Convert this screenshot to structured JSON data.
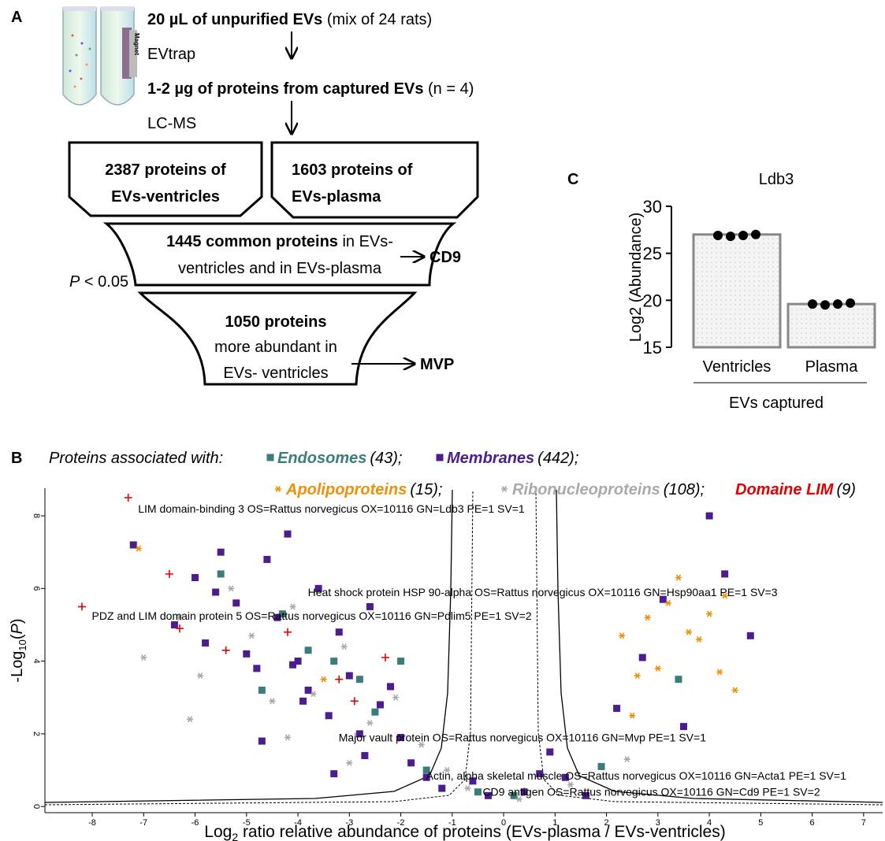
{
  "diagram": {
    "label": "A",
    "magnet": "Magnet",
    "start": {
      "bold": "20 µL of unpurified EVs",
      "normal": " (mix of 24 rats)"
    },
    "step1": "EVtrap",
    "captured": {
      "bold": "1-2 µg of proteins from captured EVs",
      "normal": " (n = 4)"
    },
    "step2": "LC-MS",
    "ventricles": [
      "2387 proteins of",
      "EVs-ventricles"
    ],
    "plasma": [
      "1603 proteins of",
      "EVs-plasma"
    ],
    "common": {
      "bold": "1445 common proteins",
      "normal": " in EVs-",
      "line2": "ventricles and in EVs-plasma"
    },
    "marker1": "CD9",
    "threshold": {
      "italic": "P",
      "normal": " < 0.05"
    },
    "abundant": [
      "1050 proteins",
      "more abundant  in",
      "EVs- ventricles"
    ],
    "marker2": "MVP"
  },
  "chart_data": [
    {
      "type": "bar",
      "panel": "C",
      "title": "Ldb3",
      "ylabel": "Log2 (Abundance)",
      "xlabel": "EVs captured",
      "categories": [
        "Ventricles",
        "Plasma"
      ],
      "values": [
        27.0,
        19.6
      ],
      "points": [
        [
          26.9,
          26.8,
          26.9,
          27.0
        ],
        [
          19.6,
          19.5,
          19.6,
          19.7
        ]
      ],
      "color": "#888888",
      "point_color": "#000000",
      "ylim": [
        15,
        30
      ],
      "yticks": [
        15,
        20,
        25,
        30
      ]
    },
    {
      "type": "scatter",
      "panel": "B",
      "legend_title": "Proteins associated with:",
      "xlabel": {
        "main": "Log",
        "sub": "2",
        "rest": " ratio relative abundance of proteins (EVs-plasma / EVs-ventricles)"
      },
      "ylabel": {
        "main": "-Log",
        "sub": "10",
        "open": "(",
        "var": "P",
        "close": ")"
      },
      "xlim": [
        -8.92,
        7.37
      ],
      "ylim": [
        -0.17,
        8.76
      ],
      "xticks": [
        -8,
        -7,
        -6,
        -5,
        -4,
        -3,
        -2,
        -1,
        0,
        1,
        2,
        3,
        4,
        5,
        6,
        7
      ],
      "yticks": [
        0,
        2,
        4,
        6,
        8
      ],
      "series": [
        {
          "name": "Endosomes",
          "legend_note": "(43);",
          "color": "#3a7d7a",
          "marker": "square",
          "x": [
            -5.5,
            -4.7,
            -4.3,
            -3.8,
            -3.3,
            -2.8,
            -2.5,
            -2.0,
            -1.5,
            -0.5,
            0.2,
            1.9,
            3.4
          ],
          "values": [
            6.4,
            3.2,
            5.3,
            4.3,
            4.0,
            3.5,
            2.6,
            4.0,
            1.0,
            0.4,
            0.3,
            1.1,
            3.5
          ]
        },
        {
          "name": "Membranes",
          "legend_note": "(442);",
          "color": "#4b1d8f",
          "marker": "square",
          "x": [
            -7.2,
            -6.4,
            -6.0,
            -5.8,
            -5.5,
            -5.2,
            -5.0,
            -4.8,
            -4.6,
            -4.4,
            -4.2,
            -4.0,
            -3.8,
            -3.6,
            -3.4,
            -3.2,
            -3.0,
            -2.8,
            -2.6,
            -2.4,
            -2.2,
            -2.0,
            -1.8,
            -1.5,
            -1.2,
            -0.6,
            -0.3,
            0.4,
            0.7,
            0.9,
            1.2,
            1.6,
            2.2,
            2.7,
            3.1,
            3.5,
            4.0,
            4.3,
            4.8,
            -3.9,
            -4.7,
            -5.6,
            -3.3,
            -2.7,
            -4.1
          ],
          "values": [
            7.2,
            5.0,
            6.3,
            4.5,
            7.0,
            5.6,
            4.2,
            3.8,
            6.8,
            5.2,
            7.5,
            4.0,
            3.2,
            6.0,
            2.5,
            4.8,
            3.6,
            2.0,
            5.5,
            2.8,
            3.3,
            1.9,
            1.2,
            0.8,
            0.5,
            0.7,
            0.3,
            0.4,
            0.9,
            1.5,
            0.8,
            0.3,
            2.7,
            4.1,
            5.7,
            2.2,
            8.0,
            6.4,
            4.7,
            2.9,
            1.8,
            5.9,
            0.9,
            1.4,
            3.9
          ]
        },
        {
          "name": "Apolipoproteins",
          "legend_note": "(15);",
          "color": "#f0900a",
          "marker": "asterisk",
          "x": [
            -7.1,
            2.5,
            2.8,
            3.0,
            3.2,
            3.4,
            3.6,
            3.8,
            4.0,
            4.2,
            4.3,
            4.5,
            2.3,
            2.6,
            -3.5
          ],
          "values": [
            7.1,
            2.5,
            5.2,
            3.8,
            5.6,
            6.3,
            4.8,
            4.6,
            5.3,
            3.7,
            5.8,
            3.2,
            4.7,
            3.6,
            3.5
          ]
        },
        {
          "name": "Ribonucleoproteins",
          "legend_note": "(108);",
          "color": "#aaaaaa",
          "marker": "asterisk",
          "x": [
            -7.0,
            -6.3,
            -5.9,
            -5.3,
            -4.9,
            -4.5,
            -4.1,
            -3.7,
            -3.1,
            -2.6,
            -2.1,
            -1.6,
            -1.1,
            -0.7,
            0.3,
            1.3,
            2.4,
            -6.1,
            -4.2,
            -3.0
          ],
          "values": [
            4.1,
            5.2,
            3.6,
            6.0,
            4.7,
            2.9,
            5.5,
            3.1,
            4.4,
            2.3,
            3.0,
            1.7,
            1.0,
            0.5,
            0.2,
            0.6,
            1.3,
            2.4,
            1.9,
            1.2
          ]
        },
        {
          "name": "Domaine LIM",
          "legend_note": "(9)",
          "color": "#e00000",
          "marker": "plus",
          "x": [
            -7.3,
            -8.2,
            -6.5,
            -6.3,
            -5.4,
            -3.2,
            -2.9,
            -4.2,
            -2.3
          ],
          "values": [
            8.5,
            5.5,
            6.4,
            4.9,
            4.3,
            3.5,
            2.9,
            4.8,
            4.1
          ]
        }
      ],
      "annotations": [
        {
          "text": "LIM domain-binding 3 OS=Rattus norvegicus OX=10116 GN=Ldb3 PE=1 SV=1",
          "x": -7.2,
          "y": 8.2,
          "color": "#e00000"
        },
        {
          "text": "PDZ and LIM domain protein 5 OS=Rattus norvegicus OX=10116 GN=Pdlim5 PE=1 SV=2",
          "x": -8.1,
          "y": 5.25,
          "color": "#e00000"
        },
        {
          "text": "Heat shock protein HSP 90-alpha OS=Rattus norvegicus OX=10116 GN=Hsp90aa1 PE=1 SV=3",
          "x": -3.9,
          "y": 5.9,
          "color": "#aaaaaa"
        },
        {
          "text": "Major vault protein OS=Rattus norvegicus OX=10116 GN=Mvp PE=1 SV=1",
          "x": -3.3,
          "y": 1.9,
          "color": "#aaaaaa"
        },
        {
          "text": "Actin, alpha skeletal muscle OS=Rattus norvegicus OX=10116 GN=Acta1 PE=1 SV=1",
          "x": -1.6,
          "y": 0.85,
          "color": "#4b1d8f"
        },
        {
          "text": "CD9 antigen OS=Rattus norvegicus OX=10116 GN=Cd9 PE=1 SV=2",
          "x": -0.5,
          "y": 0.4,
          "color": "#aaaaaa"
        }
      ]
    }
  ]
}
